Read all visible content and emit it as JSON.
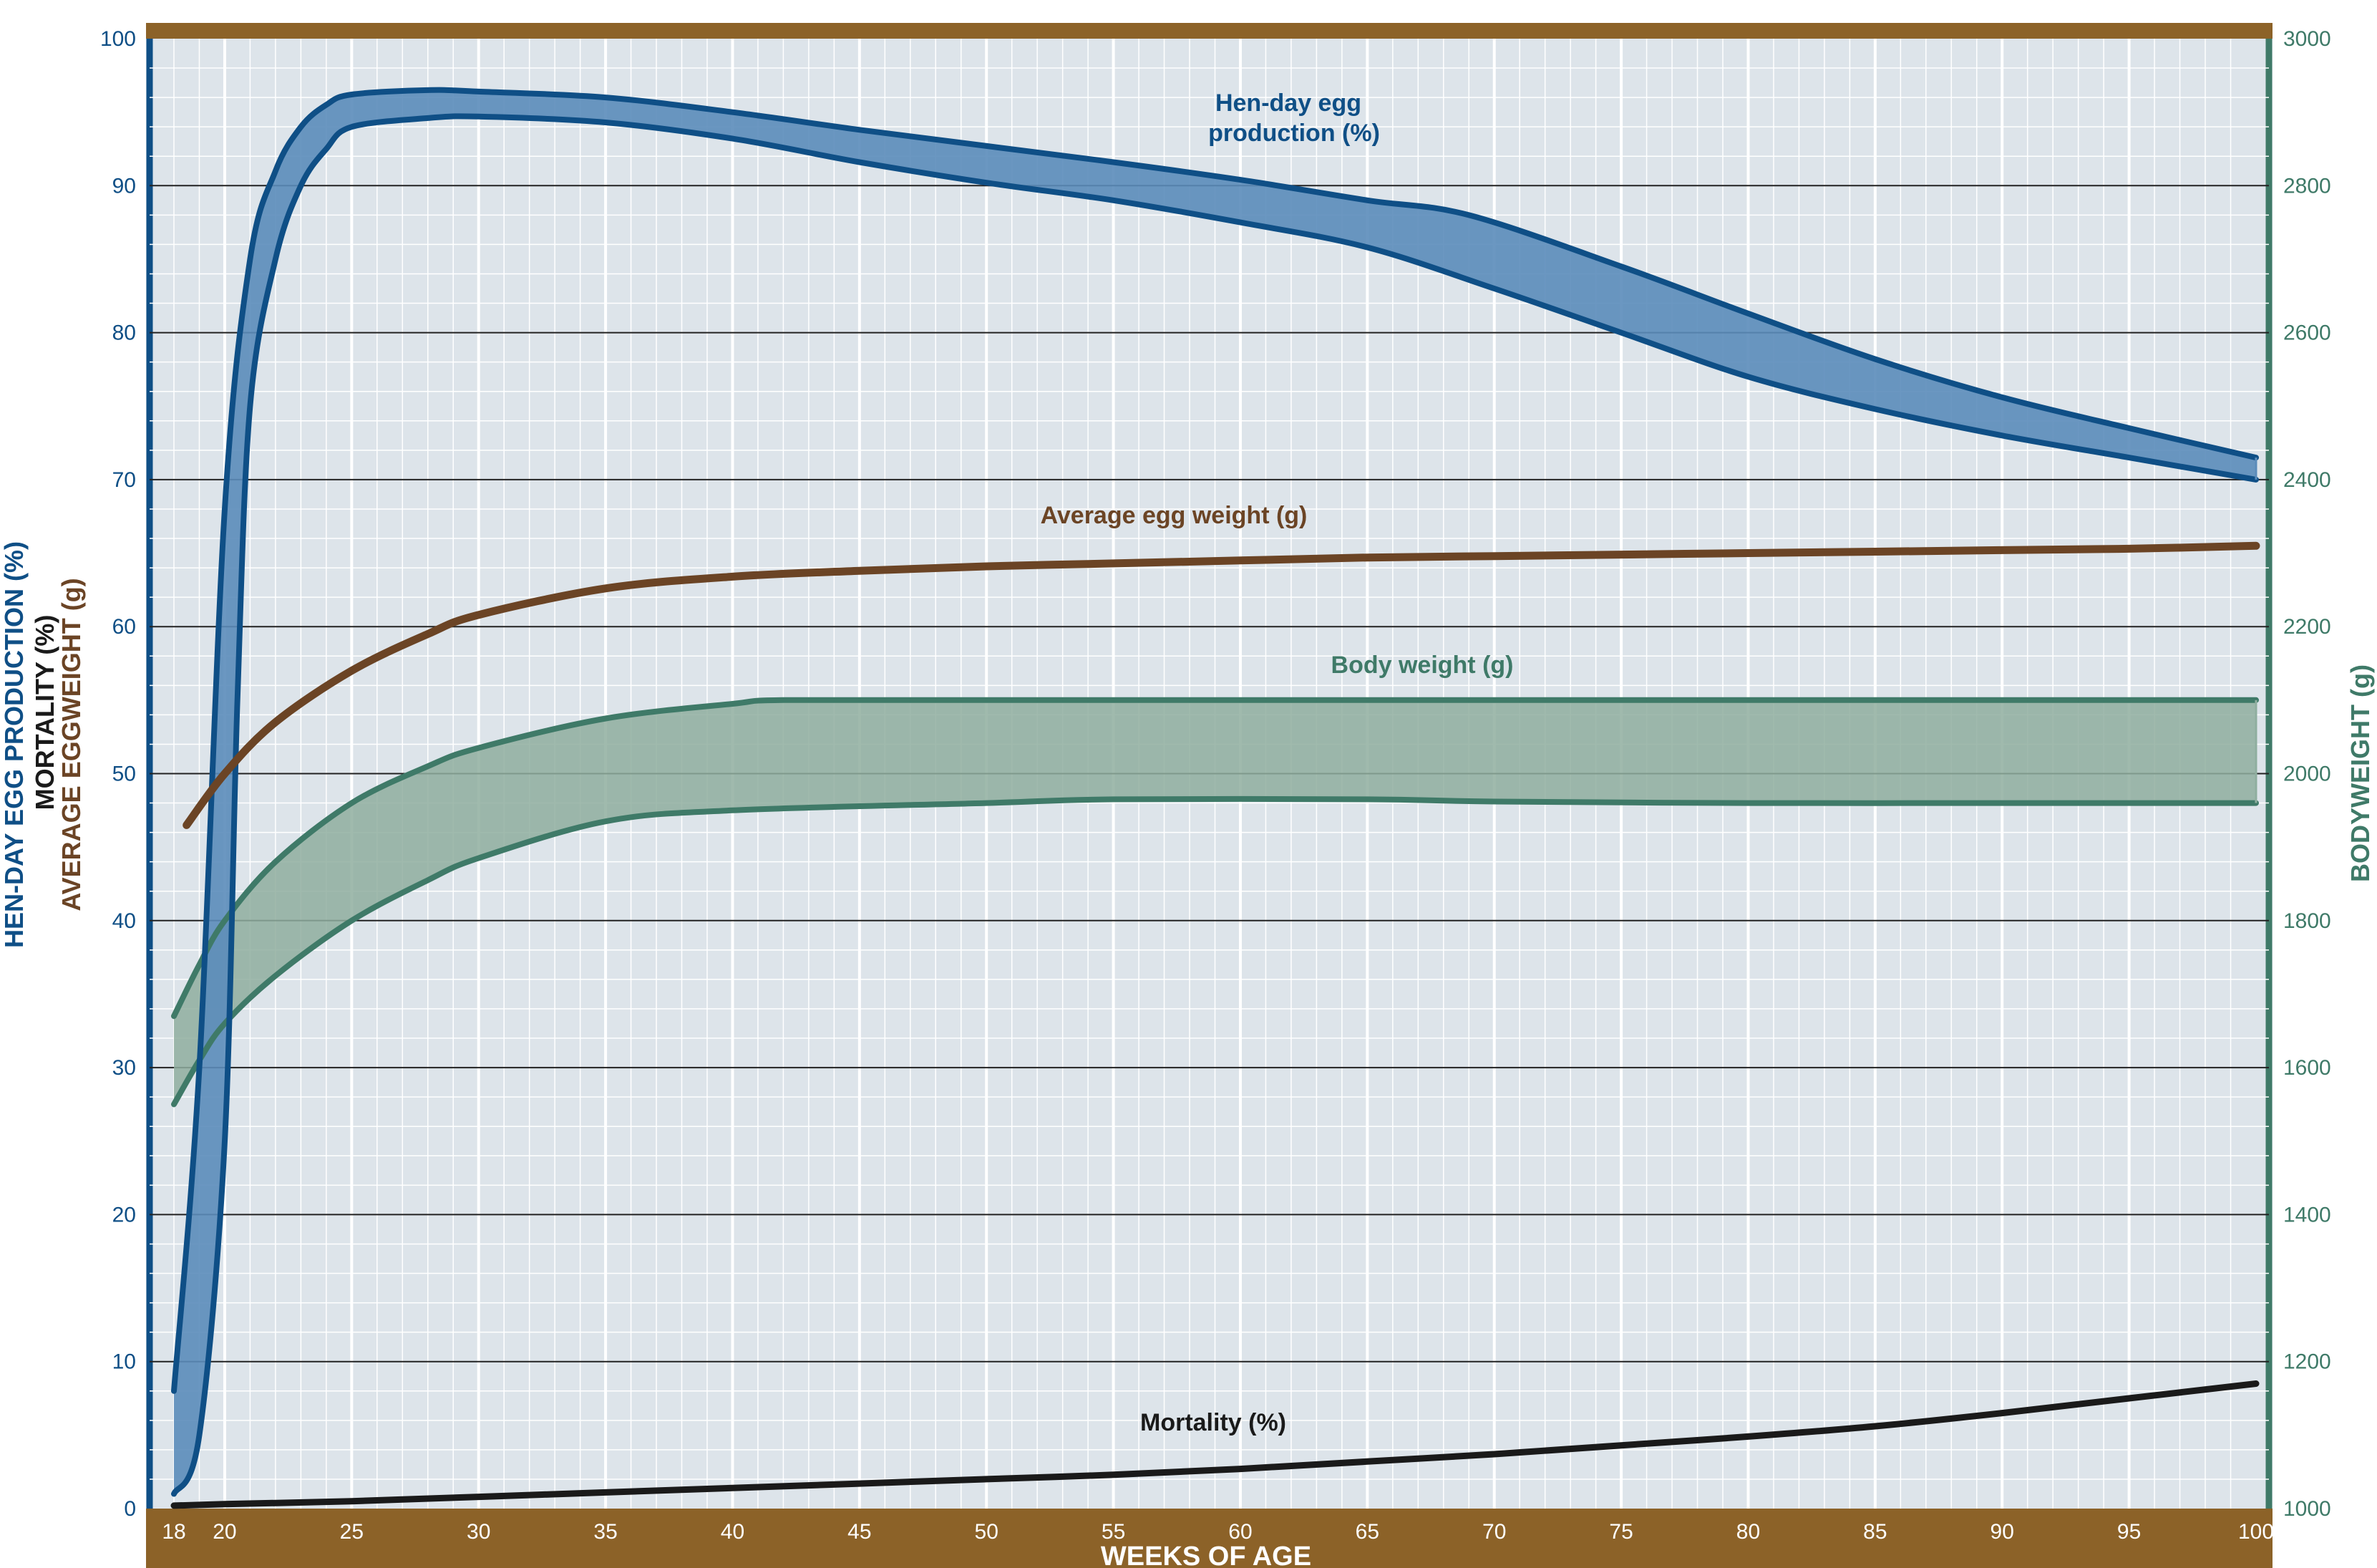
{
  "colors": {
    "plot_bg": "#dde4ea",
    "frame_brown": "#8c6228",
    "blue": "#0f4f86",
    "blue_fill": "#5b8cba",
    "egg_brown": "#6b4425",
    "green": "#3f7a68",
    "green_fill": "#8fae9f",
    "mortality": "#1a1a1a"
  },
  "chart_data": {
    "type": "line",
    "xlabel": "WEEKS OF AGE",
    "x_ticks": [
      18,
      20,
      25,
      30,
      35,
      40,
      45,
      50,
      55,
      60,
      65,
      70,
      75,
      80,
      85,
      90,
      95,
      100
    ],
    "xlim": [
      17.5,
      100
    ],
    "ylim_left": [
      0,
      100
    ],
    "ylim_right": [
      1000,
      3000
    ],
    "y_ticks_left": [
      0,
      10,
      20,
      30,
      40,
      50,
      60,
      70,
      80,
      90,
      100
    ],
    "y_ticks_right": [
      1000,
      1200,
      1400,
      1600,
      1800,
      2000,
      2200,
      2400,
      2600,
      2800,
      3000
    ],
    "ylabel_left": [
      "HEN-DAY EGG PRODUCTION (%)",
      "MORTALITY (%)",
      "AVERAGE EGG WEIGHT (g)"
    ],
    "ylabel_left_parts": {
      "production": "HEN-DAY EGG PRODUCTION (%)",
      "mortality": "MORTALITY (%)",
      "egg_weight_a": "AVERAGE EGG",
      "egg_weight_b": "WEIGHT (g)"
    },
    "ylabel_right": "BODYWEIGHT (g)",
    "grid": true,
    "series": [
      {
        "name": "Hen-day egg production (%)",
        "label_lines": [
          "Hen-day egg",
          "production (%)"
        ],
        "axis": "left",
        "kind": "band",
        "upper": [
          [
            18,
            8
          ],
          [
            19,
            30
          ],
          [
            20,
            68
          ],
          [
            21,
            85
          ],
          [
            22,
            91
          ],
          [
            23,
            94
          ],
          [
            24,
            95.5
          ],
          [
            25,
            96.2
          ],
          [
            28,
            96.5
          ],
          [
            30,
            96.4
          ],
          [
            35,
            96
          ],
          [
            40,
            95
          ],
          [
            45,
            93.8
          ],
          [
            50,
            92.7
          ],
          [
            55,
            91.6
          ],
          [
            60,
            90.4
          ],
          [
            65,
            89
          ],
          [
            69,
            88
          ],
          [
            75,
            84.5
          ],
          [
            80,
            81.3
          ],
          [
            85,
            78.2
          ],
          [
            90,
            75.6
          ],
          [
            95,
            73.5
          ],
          [
            100,
            71.5
          ]
        ],
        "lower": [
          [
            18,
            1
          ],
          [
            19,
            5
          ],
          [
            20,
            25
          ],
          [
            20.5,
            55
          ],
          [
            21,
            75
          ],
          [
            22,
            85
          ],
          [
            23,
            90
          ],
          [
            24,
            92.5
          ],
          [
            25,
            94
          ],
          [
            28,
            94.6
          ],
          [
            30,
            94.7
          ],
          [
            35,
            94.3
          ],
          [
            40,
            93.2
          ],
          [
            45,
            91.6
          ],
          [
            50,
            90.2
          ],
          [
            55,
            89
          ],
          [
            60,
            87.5
          ],
          [
            65,
            85.8
          ],
          [
            70,
            83
          ],
          [
            75,
            80
          ],
          [
            80,
            77
          ],
          [
            85,
            74.8
          ],
          [
            90,
            73
          ],
          [
            95,
            71.5
          ],
          [
            100,
            70
          ]
        ]
      },
      {
        "name": "Average egg weight (g)",
        "axis": "left",
        "kind": "line",
        "points": [
          [
            18.5,
            46.5
          ],
          [
            20,
            50
          ],
          [
            22,
            53.5
          ],
          [
            25,
            57
          ],
          [
            28,
            59.5
          ],
          [
            30,
            60.8
          ],
          [
            35,
            62.6
          ],
          [
            40,
            63.4
          ],
          [
            45,
            63.8
          ],
          [
            50,
            64.1
          ],
          [
            55,
            64.3
          ],
          [
            60,
            64.5
          ],
          [
            65,
            64.7
          ],
          [
            70,
            64.8
          ],
          [
            75,
            64.9
          ],
          [
            80,
            65.0
          ],
          [
            85,
            65.1
          ],
          [
            90,
            65.2
          ],
          [
            95,
            65.3
          ],
          [
            100,
            65.5
          ]
        ]
      },
      {
        "name": "Body weight (g)",
        "axis": "right",
        "kind": "band",
        "upper": [
          [
            18,
            1670
          ],
          [
            19,
            1740
          ],
          [
            20,
            1800
          ],
          [
            22,
            1880
          ],
          [
            25,
            1960
          ],
          [
            28,
            2010
          ],
          [
            30,
            2035
          ],
          [
            35,
            2075
          ],
          [
            40,
            2095
          ],
          [
            42,
            2100
          ],
          [
            50,
            2100
          ],
          [
            60,
            2100
          ],
          [
            70,
            2100
          ],
          [
            80,
            2100
          ],
          [
            90,
            2100
          ],
          [
            100,
            2100
          ]
        ],
        "lower": [
          [
            18,
            1550
          ],
          [
            19,
            1610
          ],
          [
            20,
            1660
          ],
          [
            22,
            1725
          ],
          [
            25,
            1800
          ],
          [
            28,
            1855
          ],
          [
            30,
            1885
          ],
          [
            35,
            1935
          ],
          [
            40,
            1950
          ],
          [
            50,
            1960
          ],
          [
            55,
            1965
          ],
          [
            65,
            1965
          ],
          [
            70,
            1962
          ],
          [
            80,
            1960
          ],
          [
            90,
            1960
          ],
          [
            100,
            1960
          ]
        ]
      },
      {
        "name": "Mortality (%)",
        "axis": "left",
        "kind": "line",
        "points": [
          [
            18,
            0.2
          ],
          [
            20,
            0.3
          ],
          [
            25,
            0.5
          ],
          [
            30,
            0.8
          ],
          [
            35,
            1.1
          ],
          [
            40,
            1.4
          ],
          [
            45,
            1.7
          ],
          [
            50,
            2.0
          ],
          [
            55,
            2.3
          ],
          [
            60,
            2.7
          ],
          [
            65,
            3.2
          ],
          [
            70,
            3.7
          ],
          [
            75,
            4.3
          ],
          [
            80,
            4.9
          ],
          [
            85,
            5.6
          ],
          [
            90,
            6.5
          ],
          [
            95,
            7.5
          ],
          [
            100,
            8.5
          ]
        ]
      }
    ]
  }
}
